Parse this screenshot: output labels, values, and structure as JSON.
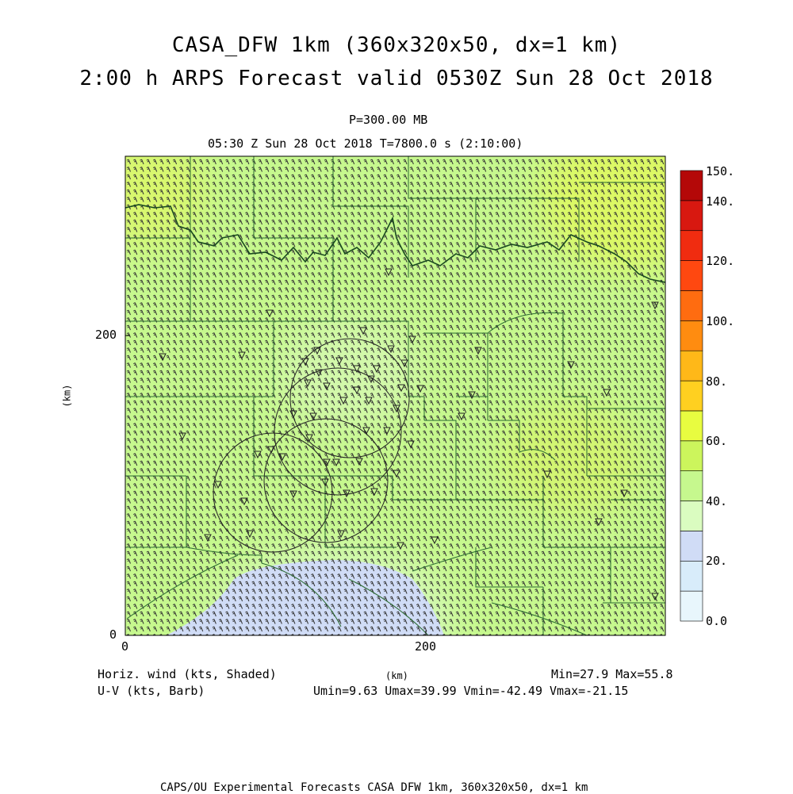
{
  "title": {
    "line1": "CASA_DFW 1km (360x320x50, dx=1 km)",
    "line2": "2:00 h ARPS Forecast valid 0530Z Sun 28 Oct 2018"
  },
  "subtitle": {
    "level": "P=300.00 MB",
    "time": "05:30 Z Sun 28 Oct 2018   T=7800.0 s (2:10:00)"
  },
  "axes": {
    "x_tick_labels": [
      "0",
      "200"
    ],
    "y_tick_labels": [
      "0",
      "200"
    ],
    "x_label": "(km)",
    "y_label": "(km)",
    "xlim": [
      0,
      360
    ],
    "ylim": [
      0,
      320
    ]
  },
  "colorbar": {
    "labels": [
      "150.",
      "140.",
      "120.",
      "100.",
      "80.",
      "60.",
      "40.",
      "20.",
      "0.0"
    ],
    "levels": [
      0,
      10,
      20,
      30,
      40,
      50,
      60,
      70,
      80,
      90,
      100,
      110,
      120,
      130,
      140,
      150
    ],
    "colors": [
      "#e8f6fc",
      "#d8ecfa",
      "#d0dcf6",
      "#dafcc0",
      "#c6f88e",
      "#ccf55c",
      "#e8fc40",
      "#ffd020",
      "#ffb818",
      "#ff8c10",
      "#ff6c10",
      "#ff4810",
      "#f02c10",
      "#d81810",
      "#b40808"
    ]
  },
  "footer": {
    "field1": "Horiz. wind (kts, Shaded)",
    "field2": "U-V (kts, Barb)",
    "units": "(km)",
    "minmax": "Min=27.9 Max=55.8",
    "uvminmax": "Umin=9.63 Umax=39.99 Vmin=-42.49 Vmax=-21.15",
    "credit": "CAPS/OU Experimental Forecasts  CASA DFW 1km, 360x320x50, dx=1 km"
  },
  "colors": {
    "county_lines": "#2a6a30",
    "river_line": "#1a4a20",
    "barbs": "#333333",
    "radar_rings": "#222222"
  },
  "chart_data": {
    "type": "heatmap",
    "field": "Horiz. wind (kts, Shaded)",
    "x_range_km": [
      0,
      360
    ],
    "y_range_km": [
      0,
      320
    ],
    "min": 27.9,
    "max": 55.8,
    "approx_regions": [
      {
        "region": "south-central (x 80-210 km, y 0-50 km)",
        "speed_kts": 28
      },
      {
        "region": "center (x 110-180 km, y 150-210 km)",
        "speed_kts": 42
      },
      {
        "region": "most of domain",
        "speed_kts": 45
      },
      {
        "region": "northwest corner",
        "speed_kts": 53
      },
      {
        "region": "northeast corner",
        "speed_kts": 54
      },
      {
        "region": "east (x 290-330 km, y 100-160 km)",
        "speed_kts": 50
      }
    ]
  }
}
